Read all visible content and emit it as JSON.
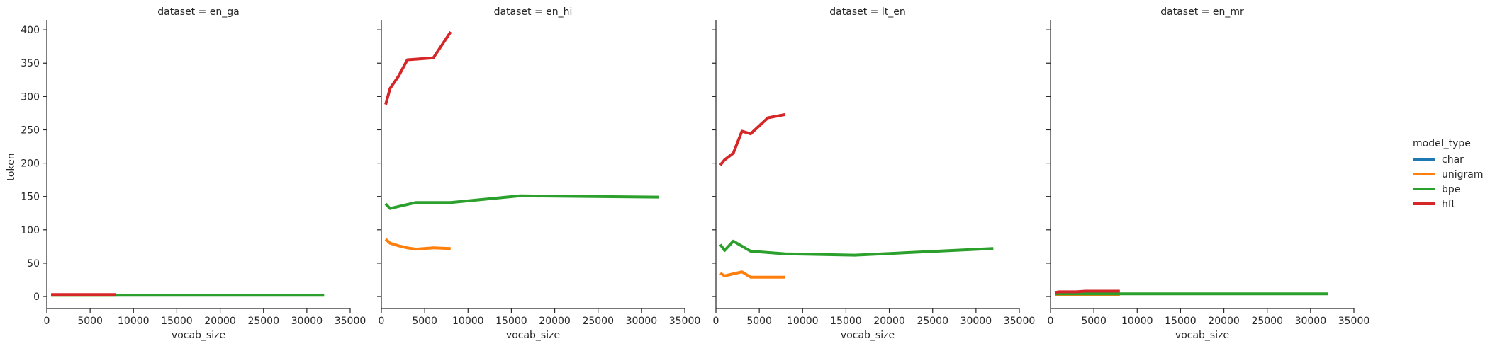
{
  "chart_data": {
    "type": "line",
    "ylabel": "token",
    "xlim": [
      0,
      35000
    ],
    "ylim": [
      -18,
      415
    ],
    "x_ticks": [
      0,
      5000,
      10000,
      15000,
      20000,
      25000,
      30000,
      35000
    ],
    "y_ticks": [
      0,
      50,
      100,
      150,
      200,
      250,
      300,
      350,
      400
    ],
    "legend": {
      "title": "model_type",
      "placement": "right",
      "entries": [
        "char",
        "unigram",
        "bpe",
        "hft"
      ]
    },
    "colors": {
      "char": "#1f77b4",
      "unigram": "#ff7f0e",
      "bpe": "#2ca02c",
      "hft": "#d62728"
    },
    "panels": [
      {
        "title": "dataset = en_ga",
        "xlabel": "vocab_size",
        "series": [
          {
            "name": "char",
            "x": [],
            "y": []
          },
          {
            "name": "unigram",
            "x": [
              500,
              1000,
              2000,
              3000,
              4000,
              6000,
              8000
            ],
            "y": [
              2,
              2,
              2,
              2,
              2,
              2,
              2
            ]
          },
          {
            "name": "bpe",
            "x": [
              500,
              1000,
              2000,
              4000,
              8000,
              16000,
              32000
            ],
            "y": [
              2,
              2,
              2,
              2,
              2,
              2,
              2
            ]
          },
          {
            "name": "hft",
            "x": [
              500,
              1000,
              2000,
              3000,
              4000,
              6000,
              8000
            ],
            "y": [
              3,
              3,
              3,
              3,
              3,
              3,
              3
            ]
          }
        ]
      },
      {
        "title": "dataset = en_hi",
        "xlabel": "vocab_size",
        "series": [
          {
            "name": "char",
            "x": [],
            "y": []
          },
          {
            "name": "unigram",
            "x": [
              500,
              1000,
              2000,
              3000,
              4000,
              6000,
              8000
            ],
            "y": [
              86,
              80,
              76,
              73,
              71,
              73,
              72
            ]
          },
          {
            "name": "bpe",
            "x": [
              500,
              1000,
              2000,
              4000,
              8000,
              16000,
              32000
            ],
            "y": [
              139,
              132,
              135,
              141,
              141,
              151,
              149
            ]
          },
          {
            "name": "hft",
            "x": [
              500,
              1000,
              2000,
              3000,
              4000,
              6000,
              8000
            ],
            "y": [
              288,
              312,
              331,
              355,
              356,
              358,
              397
            ]
          }
        ]
      },
      {
        "title": "dataset = lt_en",
        "xlabel": "vocab_size",
        "series": [
          {
            "name": "char",
            "x": [],
            "y": []
          },
          {
            "name": "unigram",
            "x": [
              500,
              1000,
              2000,
              3000,
              4000,
              6000,
              8000
            ],
            "y": [
              35,
              31,
              34,
              37,
              29,
              29,
              29
            ]
          },
          {
            "name": "bpe",
            "x": [
              500,
              1000,
              2000,
              4000,
              8000,
              16000,
              32000
            ],
            "y": [
              78,
              69,
              83,
              68,
              64,
              62,
              72
            ]
          },
          {
            "name": "hft",
            "x": [
              500,
              1000,
              2000,
              3000,
              4000,
              6000,
              8000
            ],
            "y": [
              197,
              205,
              215,
              248,
              244,
              268,
              273
            ]
          }
        ]
      },
      {
        "title": "dataset = en_mr",
        "xlabel": "vocab_size",
        "series": [
          {
            "name": "char",
            "x": [],
            "y": []
          },
          {
            "name": "unigram",
            "x": [
              500,
              1000,
              2000,
              3000,
              4000,
              6000,
              8000
            ],
            "y": [
              3,
              3,
              3,
              3,
              3,
              3,
              3
            ]
          },
          {
            "name": "bpe",
            "x": [
              500,
              1000,
              2000,
              4000,
              8000,
              16000,
              32000
            ],
            "y": [
              4,
              4,
              4,
              4,
              4,
              4,
              4
            ]
          },
          {
            "name": "hft",
            "x": [
              500,
              1000,
              2000,
              3000,
              4000,
              6000,
              8000
            ],
            "y": [
              6,
              7,
              7,
              7,
              8,
              8,
              8
            ]
          }
        ]
      }
    ]
  }
}
